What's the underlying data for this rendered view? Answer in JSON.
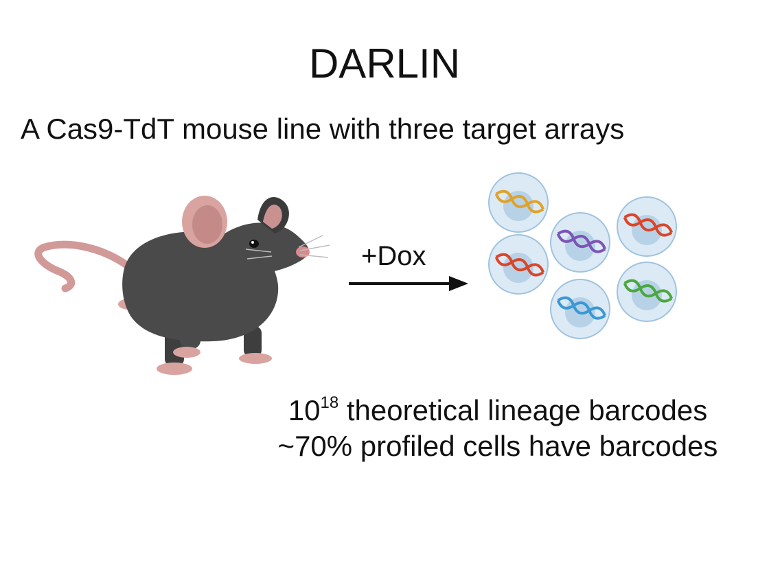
{
  "title": "DARLIN",
  "subtitle": "A Cas9-TdT mouse line with three target arrays",
  "treatment_label": "+Dox",
  "facts": {
    "barcode_base": "10",
    "barcode_exponent": "18",
    "barcode_text": " theoretical lineage barcodes",
    "profiled_text": "~70% profiled cells have barcodes"
  },
  "colors": {
    "mouse_body": "#4a4a4a",
    "mouse_pink": "#d9a3a0",
    "cell_fill": "#dceaf5",
    "cell_border": "#9fc3e0",
    "nucleus": "#b7d2e6",
    "dna_strands": [
      "#e0a22b",
      "#7b54b4",
      "#d9462a",
      "#d9462a",
      "#3a98d4",
      "#4aa83f"
    ]
  },
  "icons": [
    "mouse-illustration",
    "cell-icon",
    "dna-helix-icon",
    "arrow-right-icon"
  ]
}
